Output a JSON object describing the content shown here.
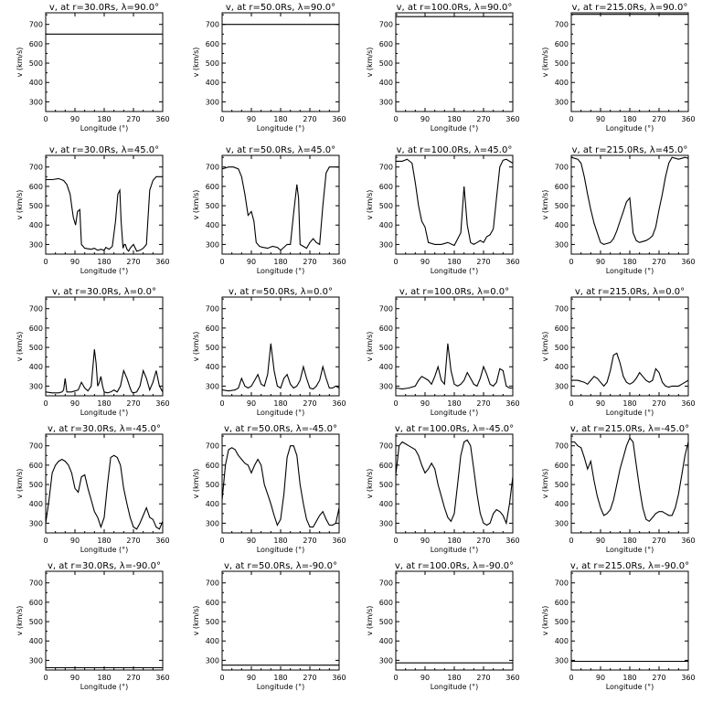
{
  "figure": {
    "type": "line",
    "xlabel": "Longitude (°)",
    "ylabel": "v (km/s)",
    "xlim": [
      0,
      360
    ],
    "ylim": [
      250,
      760
    ],
    "xticks": [
      0,
      90,
      180,
      270,
      360
    ],
    "yticks": [
      300,
      400,
      500,
      600,
      700
    ],
    "grid": false,
    "legend": "none"
  },
  "chart_data": [
    {
      "type": "line",
      "title": "v, at r=30.0Rs, λ=90.0°",
      "lat": "90.0°",
      "r": "30.0Rs",
      "x": [
        0,
        360
      ],
      "y": [
        650,
        650
      ]
    },
    {
      "type": "line",
      "title": "v, at r=50.0Rs, λ=90.0°",
      "lat": "90.0°",
      "r": "50.0Rs",
      "x": [
        0,
        360
      ],
      "y": [
        700,
        700
      ]
    },
    {
      "type": "line",
      "title": "v, at r=100.0Rs, λ=90.0°",
      "lat": "90.0°",
      "r": "100.0Rs",
      "x": [
        0,
        360
      ],
      "y": [
        740,
        740
      ]
    },
    {
      "type": "line",
      "title": "v, at r=215.0Rs, λ=90.0°",
      "lat": "90.0°",
      "r": "215.0Rs",
      "x": [
        0,
        360
      ],
      "y": [
        752,
        752
      ]
    },
    {
      "type": "line",
      "title": "v, at r=30.0Rs, λ=45.0°",
      "lat": "45.0°",
      "r": "30.0Rs",
      "x": [
        0,
        20,
        40,
        55,
        65,
        75,
        80,
        85,
        92,
        98,
        105,
        110,
        120,
        140,
        150,
        160,
        170,
        180,
        185,
        195,
        205,
        215,
        222,
        228,
        232,
        238,
        242,
        245,
        250,
        255,
        260,
        270,
        280,
        290,
        300,
        310,
        320,
        330,
        340,
        350,
        360
      ],
      "y": [
        635,
        635,
        640,
        630,
        610,
        560,
        500,
        440,
        400,
        470,
        480,
        300,
        280,
        275,
        280,
        270,
        275,
        270,
        285,
        275,
        290,
        420,
        560,
        580,
        420,
        280,
        300,
        300,
        275,
        265,
        280,
        300,
        265,
        270,
        280,
        300,
        580,
        630,
        650,
        650,
        650
      ]
    },
    {
      "type": "line",
      "title": "v, at r=50.0Rs, λ=45.0°",
      "lat": "45.0°",
      "r": "50.0Rs",
      "x": [
        0,
        20,
        35,
        50,
        60,
        70,
        80,
        90,
        98,
        105,
        115,
        125,
        140,
        155,
        170,
        180,
        190,
        200,
        210,
        220,
        230,
        235,
        240,
        250,
        260,
        270,
        280,
        290,
        300,
        310,
        320,
        330,
        340,
        350,
        360
      ],
      "y": [
        690,
        700,
        700,
        690,
        650,
        560,
        450,
        470,
        420,
        310,
        290,
        285,
        280,
        290,
        285,
        270,
        285,
        300,
        300,
        460,
        610,
        540,
        300,
        290,
        280,
        310,
        330,
        310,
        300,
        500,
        670,
        700,
        700,
        700,
        700
      ]
    },
    {
      "type": "line",
      "title": "v, at r=100.0Rs, λ=45.0°",
      "lat": "45.0°",
      "r": "100.0Rs",
      "x": [
        0,
        20,
        35,
        50,
        60,
        70,
        80,
        90,
        100,
        120,
        140,
        160,
        180,
        200,
        210,
        220,
        230,
        240,
        250,
        260,
        270,
        280,
        290,
        300,
        310,
        320,
        330,
        340,
        350,
        360
      ],
      "y": [
        730,
        730,
        740,
        720,
        620,
        500,
        420,
        390,
        310,
        300,
        300,
        310,
        295,
        360,
        600,
        400,
        310,
        300,
        310,
        320,
        310,
        340,
        350,
        380,
        540,
        700,
        735,
        740,
        730,
        720
      ]
    },
    {
      "type": "line",
      "title": "v, at r=215.0Rs, λ=45.0°",
      "lat": "45.0°",
      "r": "215.0Rs",
      "x": [
        0,
        10,
        20,
        30,
        40,
        50,
        60,
        70,
        80,
        90,
        100,
        110,
        120,
        130,
        140,
        150,
        160,
        170,
        180,
        190,
        200,
        210,
        220,
        230,
        240,
        250,
        260,
        270,
        280,
        290,
        300,
        310,
        320,
        330,
        340,
        350,
        360
      ],
      "y": [
        750,
        745,
        740,
        720,
        650,
        560,
        480,
        410,
        360,
        310,
        300,
        305,
        310,
        330,
        370,
        420,
        470,
        520,
        540,
        360,
        320,
        310,
        315,
        320,
        330,
        345,
        390,
        480,
        560,
        650,
        720,
        750,
        745,
        740,
        745,
        750,
        745
      ]
    },
    {
      "type": "line",
      "title": "v, at r=30.0Rs, λ=0.0°",
      "lat": "0.0°",
      "r": "30.0Rs",
      "x": [
        0,
        20,
        40,
        50,
        55,
        60,
        65,
        80,
        90,
        100,
        110,
        120,
        130,
        140,
        150,
        155,
        160,
        165,
        170,
        175,
        180,
        190,
        200,
        210,
        220,
        230,
        240,
        250,
        260,
        265,
        270,
        280,
        290,
        300,
        310,
        320,
        330,
        340,
        350,
        360
      ],
      "y": [
        270,
        265,
        265,
        270,
        280,
        340,
        270,
        270,
        275,
        280,
        320,
        290,
        275,
        300,
        490,
        420,
        300,
        320,
        350,
        300,
        270,
        265,
        270,
        280,
        270,
        300,
        380,
        340,
        290,
        270,
        265,
        270,
        300,
        380,
        340,
        280,
        320,
        380,
        300,
        270
      ]
    },
    {
      "type": "line",
      "title": "v, at r=50.0Rs, λ=0.0°",
      "lat": "0.0°",
      "r": "50.0Rs",
      "x": [
        0,
        20,
        40,
        50,
        60,
        70,
        80,
        90,
        100,
        110,
        120,
        130,
        140,
        150,
        160,
        170,
        180,
        190,
        200,
        210,
        220,
        230,
        240,
        250,
        260,
        270,
        280,
        290,
        300,
        310,
        320,
        330,
        340,
        350,
        360
      ],
      "y": [
        280,
        275,
        280,
        290,
        340,
        300,
        290,
        300,
        330,
        360,
        310,
        300,
        360,
        520,
        380,
        300,
        290,
        340,
        360,
        310,
        290,
        300,
        330,
        400,
        340,
        290,
        285,
        300,
        330,
        400,
        340,
        290,
        290,
        300,
        290
      ]
    },
    {
      "type": "line",
      "title": "v, at r=100.0Rs, λ=0.0°",
      "lat": "0.0°",
      "r": "100.0Rs",
      "x": [
        0,
        20,
        40,
        60,
        70,
        80,
        90,
        100,
        110,
        120,
        130,
        140,
        150,
        160,
        170,
        180,
        190,
        200,
        210,
        220,
        230,
        240,
        250,
        260,
        270,
        280,
        290,
        300,
        310,
        320,
        330,
        340,
        350,
        360
      ],
      "y": [
        290,
        285,
        290,
        300,
        330,
        350,
        340,
        330,
        310,
        350,
        400,
        330,
        310,
        520,
        380,
        310,
        300,
        310,
        330,
        370,
        340,
        310,
        300,
        340,
        400,
        360,
        310,
        300,
        320,
        390,
        380,
        300,
        290,
        290
      ]
    },
    {
      "type": "line",
      "title": "v, at r=215.0Rs, λ=0.0°",
      "lat": "0.0°",
      "r": "215.0Rs",
      "x": [
        0,
        20,
        40,
        50,
        60,
        70,
        80,
        90,
        100,
        110,
        120,
        130,
        140,
        150,
        160,
        170,
        180,
        190,
        200,
        210,
        220,
        230,
        240,
        250,
        260,
        270,
        280,
        290,
        300,
        310,
        320,
        330,
        340,
        350,
        360
      ],
      "y": [
        330,
        330,
        320,
        310,
        330,
        350,
        340,
        320,
        300,
        320,
        380,
        460,
        470,
        420,
        350,
        320,
        310,
        320,
        340,
        370,
        350,
        330,
        320,
        330,
        390,
        370,
        320,
        300,
        295,
        300,
        300,
        300,
        310,
        320,
        330
      ]
    },
    {
      "type": "line",
      "title": "v, at r=30.0Rs, λ=-45.0°",
      "lat": "-45.0°",
      "r": "30.0Rs",
      "x": [
        0,
        10,
        20,
        30,
        40,
        50,
        60,
        70,
        80,
        90,
        100,
        110,
        120,
        130,
        140,
        150,
        160,
        170,
        180,
        190,
        200,
        210,
        220,
        230,
        240,
        250,
        260,
        270,
        280,
        290,
        300,
        310,
        320,
        330,
        340,
        350,
        360
      ],
      "y": [
        300,
        420,
        560,
        600,
        620,
        630,
        620,
        600,
        560,
        480,
        460,
        540,
        550,
        480,
        420,
        360,
        330,
        280,
        330,
        500,
        640,
        650,
        640,
        600,
        480,
        400,
        330,
        280,
        270,
        300,
        340,
        380,
        330,
        320,
        280,
        270,
        310
      ]
    },
    {
      "type": "line",
      "title": "v, at r=50.0Rs, λ=-45.0°",
      "lat": "-45.0°",
      "r": "50.0Rs",
      "x": [
        0,
        10,
        20,
        30,
        40,
        50,
        60,
        70,
        80,
        90,
        100,
        110,
        120,
        130,
        140,
        150,
        160,
        170,
        180,
        190,
        200,
        210,
        220,
        230,
        240,
        250,
        260,
        270,
        280,
        290,
        300,
        310,
        320,
        330,
        340,
        350,
        360
      ],
      "y": [
        420,
        600,
        680,
        690,
        680,
        650,
        630,
        610,
        600,
        560,
        600,
        630,
        600,
        500,
        450,
        400,
        340,
        290,
        320,
        450,
        640,
        700,
        700,
        650,
        500,
        400,
        320,
        280,
        280,
        310,
        340,
        360,
        320,
        290,
        290,
        300,
        380
      ]
    },
    {
      "type": "line",
      "title": "v, at r=100.0Rs, λ=-45.0°",
      "lat": "-45.0°",
      "r": "100.0Rs",
      "x": [
        0,
        10,
        20,
        30,
        40,
        50,
        60,
        70,
        80,
        90,
        100,
        110,
        120,
        130,
        140,
        150,
        160,
        170,
        180,
        190,
        200,
        210,
        220,
        230,
        240,
        250,
        260,
        270,
        280,
        290,
        300,
        310,
        320,
        330,
        340,
        350,
        360
      ],
      "y": [
        550,
        700,
        720,
        710,
        700,
        690,
        680,
        650,
        600,
        560,
        580,
        610,
        580,
        500,
        440,
        380,
        330,
        310,
        350,
        500,
        650,
        720,
        730,
        700,
        580,
        450,
        350,
        300,
        290,
        300,
        350,
        370,
        360,
        340,
        300,
        400,
        540
      ]
    },
    {
      "type": "line",
      "title": "v, at r=215.0Rs, λ=-45.0°",
      "lat": "-45.0°",
      "r": "215.0Rs",
      "x": [
        0,
        10,
        20,
        30,
        40,
        50,
        60,
        70,
        80,
        90,
        100,
        110,
        120,
        130,
        140,
        150,
        160,
        170,
        180,
        190,
        200,
        210,
        220,
        230,
        240,
        250,
        260,
        270,
        280,
        290,
        300,
        310,
        320,
        330,
        340,
        350,
        360
      ],
      "y": [
        720,
        720,
        700,
        690,
        640,
        580,
        620,
        520,
        440,
        380,
        340,
        350,
        370,
        420,
        500,
        580,
        640,
        700,
        740,
        720,
        600,
        480,
        380,
        320,
        310,
        330,
        350,
        360,
        360,
        350,
        340,
        340,
        380,
        450,
        550,
        650,
        720
      ]
    },
    {
      "type": "line",
      "title": "v, at r=30.0Rs, λ=-90.0°",
      "lat": "-90.0°",
      "r": "30.0Rs",
      "x": [
        0,
        360
      ],
      "y": [
        262,
        262
      ]
    },
    {
      "type": "line",
      "title": "v, at r=50.0Rs, λ=-90.0°",
      "lat": "-90.0°",
      "r": "50.0Rs",
      "x": [
        0,
        360
      ],
      "y": [
        275,
        275
      ]
    },
    {
      "type": "line",
      "title": "v, at r=100.0Rs, λ=-90.0°",
      "lat": "-90.0°",
      "r": "100.0Rs",
      "x": [
        0,
        360
      ],
      "y": [
        287,
        287
      ]
    },
    {
      "type": "line",
      "title": "v, at r=215.0Rs, λ=-90.0°",
      "lat": "-90.0°",
      "r": "215.0Rs",
      "x": [
        0,
        360
      ],
      "y": [
        295,
        295
      ]
    }
  ]
}
